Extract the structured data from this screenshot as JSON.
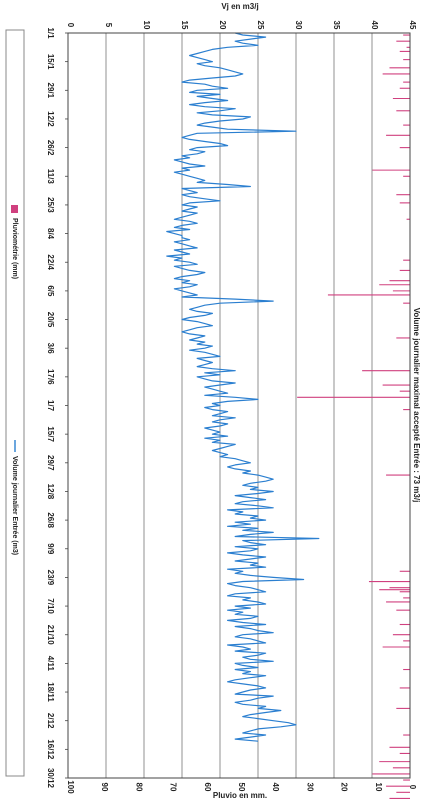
{
  "chart_data": {
    "type": "line",
    "orientation": "rotated-90-clockwise",
    "top_axis_title": "Vj en m3/j",
    "bottom_axis_title": "Pluvio en mm.",
    "volume_axis": {
      "ticks": [
        "0",
        "5",
        "10",
        "15",
        "20",
        "25",
        "30",
        "35",
        "40",
        "45"
      ],
      "range": [
        0,
        45
      ]
    },
    "rain_axis": {
      "ticks": [
        "100",
        "90",
        "80",
        "70",
        "60",
        "50",
        "40",
        "30",
        "20",
        "10",
        "0"
      ],
      "range": [
        0,
        100
      ],
      "reversed": true
    },
    "date_ticks": [
      "1/1",
      "15/1",
      "29/1",
      "12/2",
      "26/2",
      "11/3",
      "25/3",
      "8/4",
      "22/4",
      "6/5",
      "20/5",
      "3/6",
      "17/6",
      "1/7",
      "15/7",
      "29/7",
      "12/8",
      "26/8",
      "9/9",
      "23/9",
      "7/10",
      "21/10",
      "4/11",
      "18/11",
      "2/12",
      "16/12",
      "30/12"
    ],
    "annotation": "Volume journalier maximal accepté Entrée : 73 m3/j",
    "series": [
      {
        "name": "Volume journalier Entrée (m3)",
        "color": "#2b7fd0",
        "axis": "volume",
        "values": [
          22,
          23,
          26,
          24,
          22,
          23,
          25,
          21,
          19,
          18,
          17,
          16,
          17,
          18,
          19,
          17,
          18,
          20,
          21,
          22,
          23,
          22,
          19,
          16,
          15,
          18,
          19,
          21,
          17,
          16,
          20,
          17,
          19,
          21,
          18,
          16,
          18,
          22,
          20,
          17,
          19,
          24,
          23,
          20,
          18,
          17,
          19,
          21,
          30,
          17,
          16,
          15,
          16,
          18,
          20,
          21,
          17,
          16,
          18,
          17,
          15,
          16,
          14,
          15,
          16,
          18,
          15,
          16,
          14,
          15,
          16,
          17,
          18,
          17,
          21,
          24,
          15,
          16,
          17,
          15,
          16,
          18,
          20,
          16,
          15,
          17,
          16,
          15,
          17,
          16,
          15,
          14,
          16,
          17,
          15,
          14,
          16,
          13,
          14,
          15,
          15,
          16,
          14,
          15,
          16,
          17,
          14,
          15,
          16,
          13,
          15,
          14,
          16,
          17,
          14,
          15,
          16,
          18,
          17,
          15,
          14,
          16,
          15,
          17,
          16,
          14,
          15,
          16,
          17,
          15,
          22,
          27,
          20,
          18,
          17,
          16,
          17,
          19,
          18,
          16,
          15,
          17,
          18,
          19,
          17,
          16,
          15,
          16,
          18,
          17,
          16,
          18,
          17,
          19,
          18,
          16,
          18,
          19,
          20,
          17,
          18,
          19,
          18,
          17,
          19,
          22,
          18,
          20,
          17,
          18,
          19,
          22,
          20,
          18,
          19,
          20,
          21,
          18,
          22,
          25,
          21,
          19,
          20,
          18,
          19,
          21,
          20,
          19,
          22,
          20,
          19,
          21,
          20,
          18,
          19,
          20,
          19,
          21,
          18,
          20,
          19,
          22,
          21,
          20,
          19,
          20,
          21,
          20,
          22,
          23,
          24,
          22,
          21,
          22,
          24,
          23,
          25,
          26,
          27,
          26,
          24,
          23,
          25,
          24,
          27,
          25,
          22,
          24,
          26,
          23,
          22,
          25,
          27,
          21,
          23,
          22,
          25,
          24,
          26,
          22,
          24,
          21,
          25,
          23,
          27,
          24,
          22,
          33,
          23,
          24,
          26,
          22,
          25,
          24,
          21,
          23,
          26,
          24,
          22,
          25,
          24,
          26,
          21,
          23,
          22,
          24,
          27,
          31,
          23,
          21,
          22,
          24,
          25,
          26,
          22,
          21,
          24,
          23,
          25,
          26,
          22,
          24,
          21,
          23,
          22,
          25,
          24,
          21,
          23,
          26,
          22,
          24,
          25,
          27,
          23,
          22,
          24,
          25,
          26,
          21,
          23,
          24,
          22,
          26,
          25,
          23,
          24,
          27,
          22,
          23,
          25,
          22,
          24,
          23,
          26,
          24,
          22,
          21,
          23,
          25,
          26,
          24,
          23,
          22,
          27,
          25,
          24,
          22,
          23,
          26,
          25,
          28,
          26,
          24,
          23,
          25,
          27,
          29,
          30,
          28,
          25,
          24,
          23,
          26,
          24,
          22,
          25
        ]
      },
      {
        "name": "Pluviométrie (mm)",
        "color": "#d0407f",
        "axis": "rain",
        "values": [
          0,
          2,
          0,
          0,
          4,
          0,
          0,
          1,
          0,
          3,
          0,
          0,
          0,
          2,
          0,
          0,
          0,
          6,
          0,
          0,
          8,
          0,
          0,
          0,
          2,
          0,
          0,
          3,
          0,
          0,
          0,
          0,
          5,
          0,
          0,
          0,
          0,
          0,
          4,
          0,
          0,
          0,
          0,
          0,
          0,
          2,
          0,
          0,
          0,
          0,
          7,
          0,
          0,
          0,
          0,
          0,
          3,
          0,
          0,
          0,
          0,
          0,
          0,
          0,
          0,
          0,
          0,
          11,
          0,
          0,
          2,
          0,
          0,
          0,
          0,
          0,
          0,
          0,
          0,
          4,
          0,
          0,
          0,
          3,
          0,
          0,
          0,
          0,
          0,
          0,
          0,
          1,
          0,
          0,
          0,
          0,
          0,
          0,
          0,
          0,
          0,
          0,
          0,
          0,
          0,
          0,
          0,
          0,
          0,
          0,
          0,
          2,
          0,
          0,
          0,
          0,
          3,
          0,
          0,
          0,
          0,
          6,
          0,
          9,
          0,
          0,
          5,
          0,
          24,
          0,
          0,
          0,
          2,
          0,
          0,
          0,
          0,
          0,
          0,
          0,
          0,
          0,
          0,
          0,
          0,
          0,
          0,
          0,
          0,
          4,
          0,
          0,
          0,
          0,
          0,
          0,
          0,
          0,
          0,
          0,
          0,
          0,
          0,
          0,
          0,
          14,
          0,
          0,
          0,
          0,
          0,
          0,
          8,
          0,
          0,
          3,
          0,
          0,
          33,
          0,
          0,
          0,
          0,
          0,
          2,
          0,
          0,
          0,
          0,
          0,
          0,
          0,
          0,
          0,
          0,
          0,
          0,
          0,
          0,
          0,
          0,
          0,
          0,
          0,
          0,
          0,
          0,
          0,
          0,
          0,
          0,
          0,
          0,
          0,
          0,
          0,
          7,
          0,
          0,
          0,
          0,
          0,
          0,
          0,
          0,
          0,
          0,
          0,
          0,
          0,
          0,
          0,
          0,
          0,
          0,
          0,
          0,
          0,
          0,
          0,
          0,
          0,
          0,
          0,
          0,
          0,
          0,
          0,
          0,
          0,
          0,
          0,
          0,
          0,
          0,
          0,
          0,
          0,
          0,
          0,
          0,
          0,
          0,
          3,
          0,
          0,
          0,
          0,
          12,
          0,
          0,
          6,
          9,
          3,
          0,
          0,
          2,
          0,
          7,
          0,
          0,
          0,
          4,
          0,
          0,
          0,
          0,
          0,
          0,
          3,
          0,
          0,
          0,
          0,
          5,
          0,
          0,
          2,
          0,
          0,
          8,
          0,
          0,
          0,
          0,
          0,
          0,
          0,
          0,
          0,
          0,
          2,
          0,
          0,
          0,
          0,
          0,
          0,
          0,
          0,
          3,
          0,
          0,
          0,
          0,
          0,
          0,
          0,
          0,
          0,
          4,
          0,
          0,
          0,
          0,
          0,
          0,
          0,
          0,
          0,
          0,
          0,
          0,
          2,
          0,
          0,
          0,
          0,
          0,
          6,
          0,
          0,
          3,
          0,
          0,
          0,
          9,
          0,
          0,
          5,
          0,
          0,
          11,
          0,
          0,
          2,
          0,
          0,
          7,
          0,
          0,
          4,
          0,
          0,
          6,
          0,
          0,
          0,
          3,
          0,
          0,
          8,
          0,
          0,
          2,
          0,
          0
        ]
      }
    ],
    "legend": {
      "rain_label": "Pluviométrie (mm)",
      "volume_label": "Volume journalier Entrée (m3)"
    }
  }
}
